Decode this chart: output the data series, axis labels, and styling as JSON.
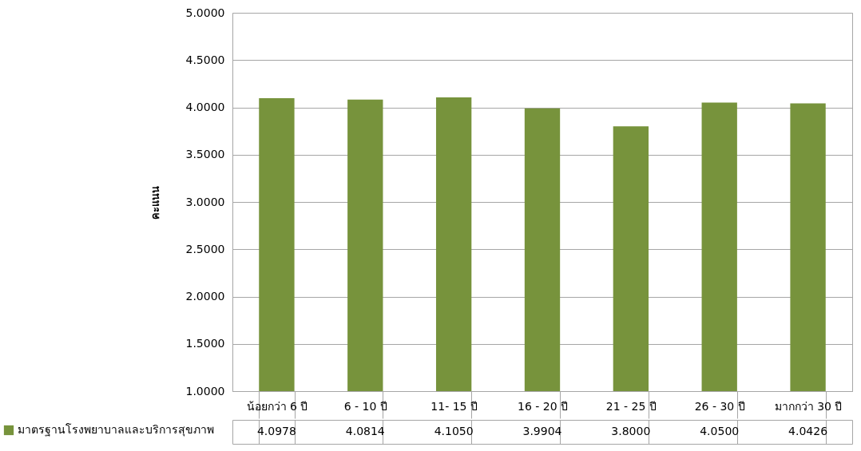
{
  "chart_data": {
    "type": "bar",
    "ylabel": "คะแนน",
    "categories": [
      "น้อยกว่า 6 ปี",
      "6 - 10 ปี",
      "11- 15 ปี",
      "16 - 20 ปี",
      "21 - 25 ปี",
      "26 - 30 ปี",
      "มากกว่า 30 ปี"
    ],
    "series": [
      {
        "name": "มาตรฐานโรงพยาบาลและบริการสุขภาพ",
        "color": "#77933c",
        "values": [
          4.0978,
          4.0814,
          4.105,
          3.9904,
          3.8,
          4.05,
          4.0426
        ],
        "value_labels": [
          "4.0978",
          "4.0814",
          "4.1050",
          "3.9904",
          "3.8000",
          "4.0500",
          "4.0426"
        ]
      }
    ],
    "ylim": [
      1,
      5
    ],
    "yticks": [
      {
        "value": 1,
        "label": "1.0000"
      },
      {
        "value": 1.5,
        "label": "1.5000"
      },
      {
        "value": 2,
        "label": "2.0000"
      },
      {
        "value": 2.5,
        "label": "2.5000"
      },
      {
        "value": 3,
        "label": "3.0000"
      },
      {
        "value": 3.5,
        "label": "3.5000"
      },
      {
        "value": 4,
        "label": "4.0000"
      },
      {
        "value": 4.5,
        "label": "4.5000"
      },
      {
        "value": 5,
        "label": "5.0000"
      }
    ],
    "grid": "y",
    "legend": "bottom"
  }
}
